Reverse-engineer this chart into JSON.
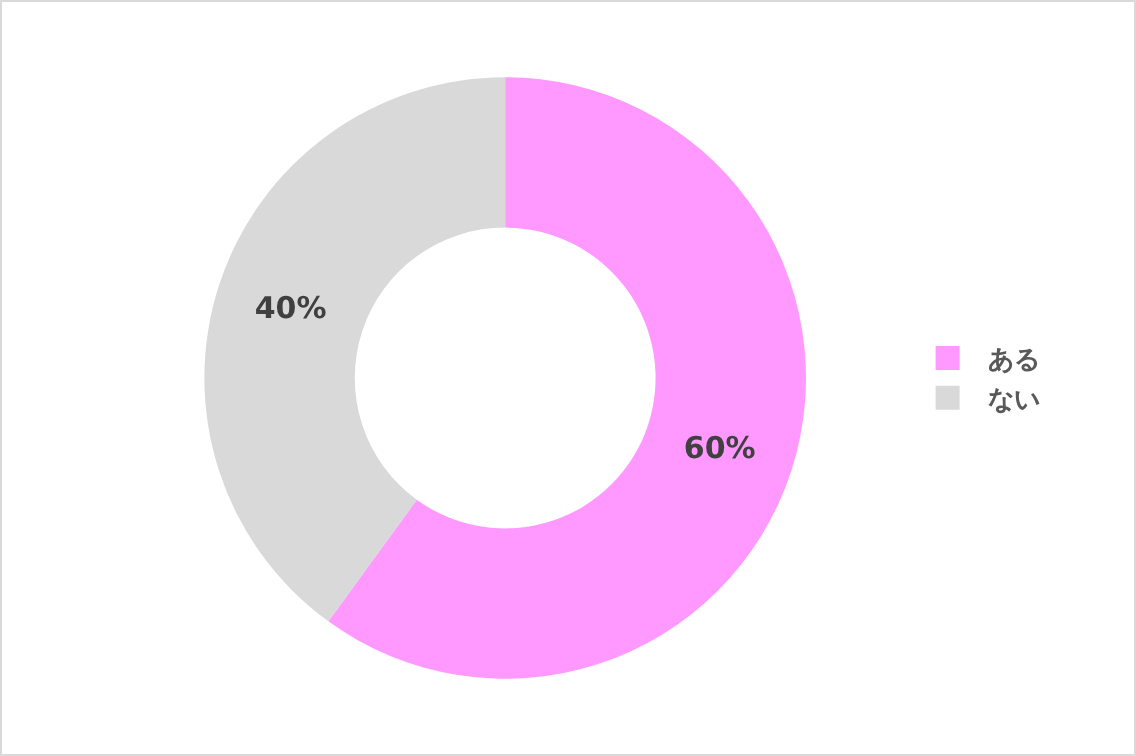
{
  "chart_data": {
    "type": "donut",
    "categories": [
      "ある",
      "ない"
    ],
    "values": [
      60,
      40
    ],
    "colors": [
      "#ff99ff",
      "#d9d9d9"
    ],
    "value_labels": [
      "60%",
      "40%"
    ],
    "legend": "right"
  }
}
